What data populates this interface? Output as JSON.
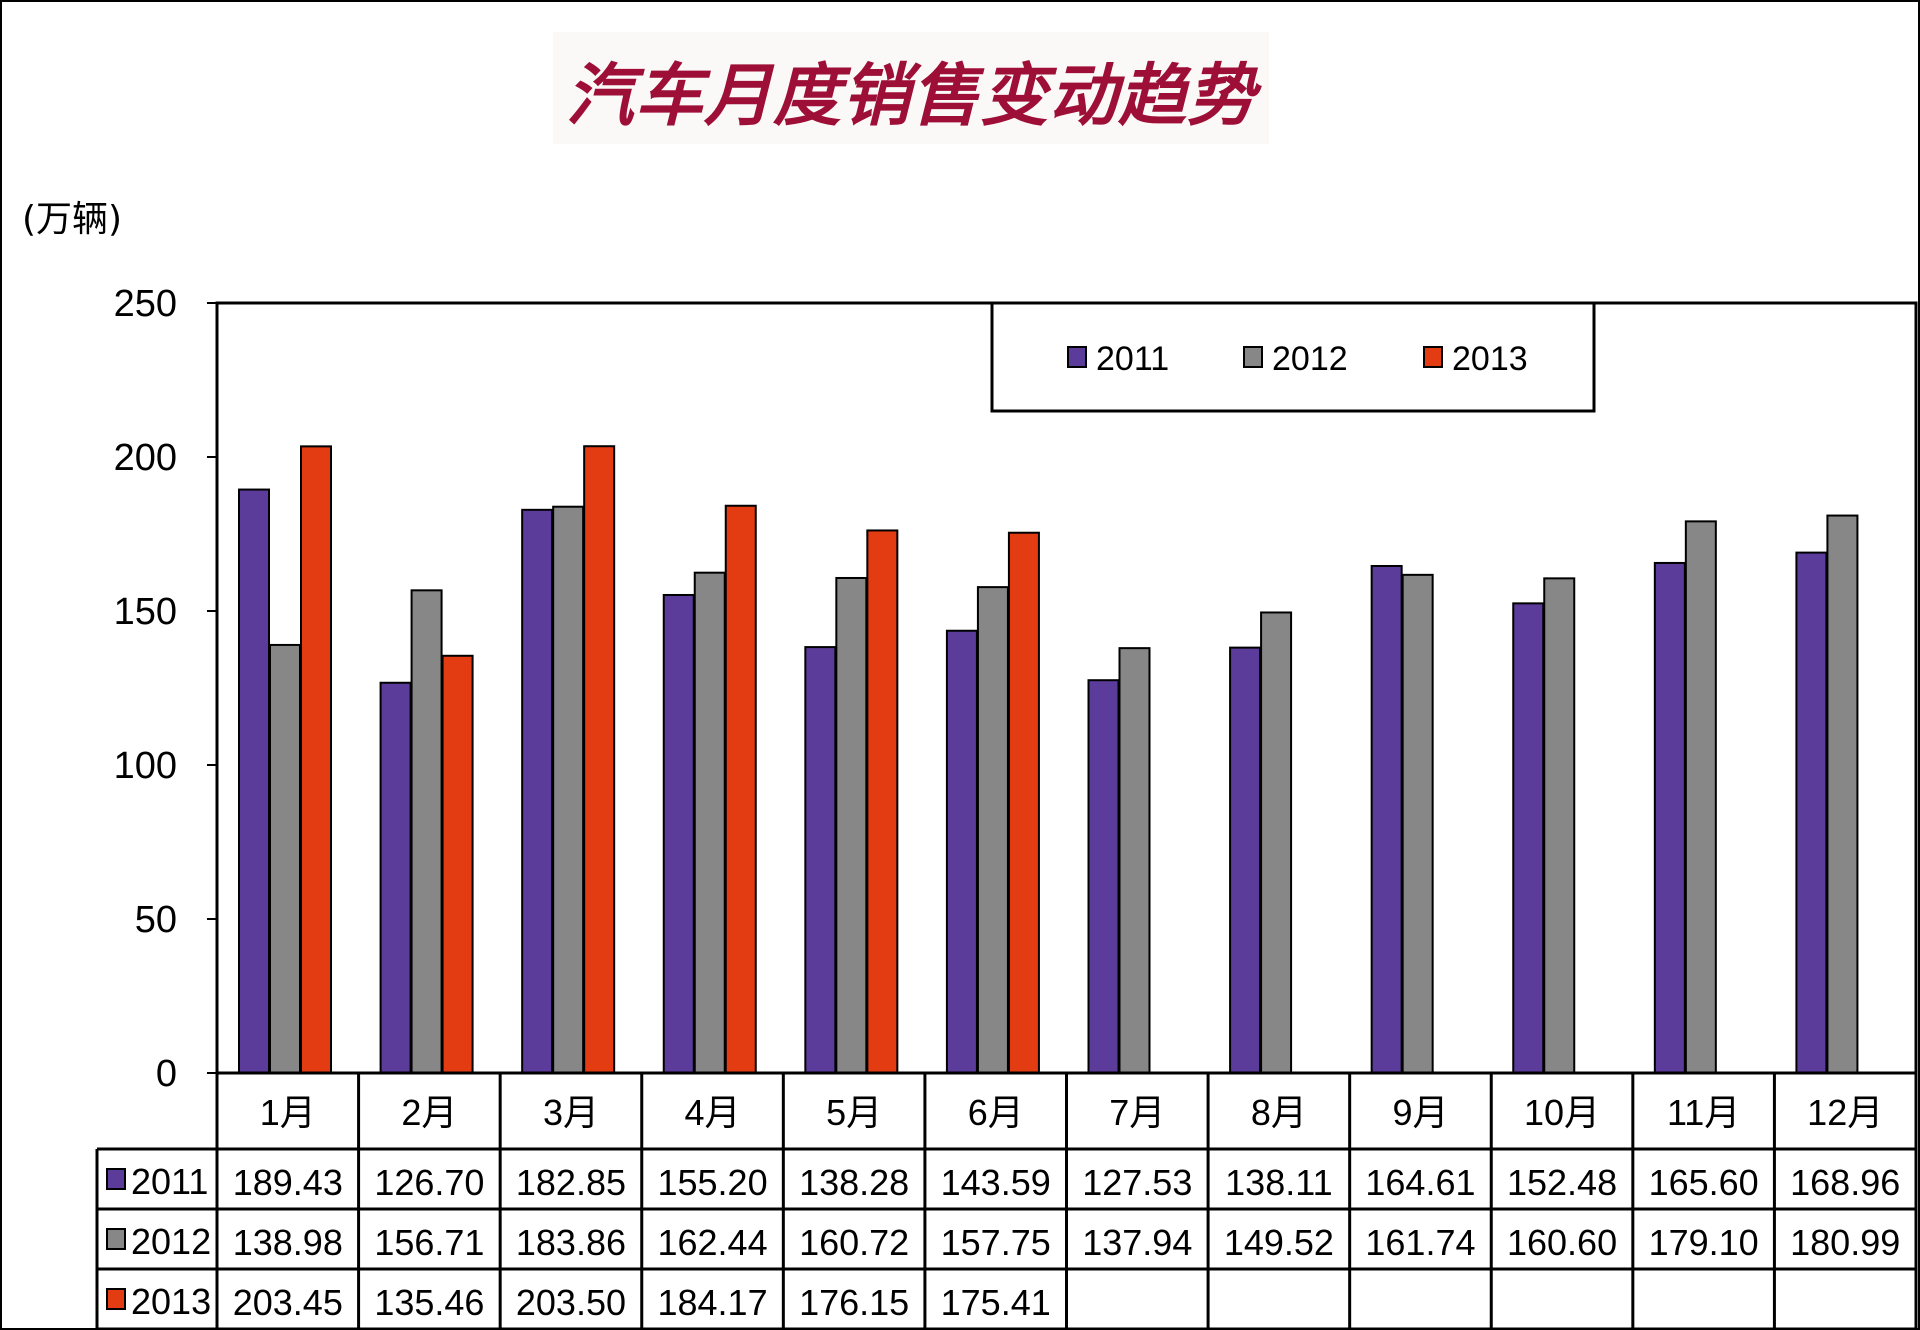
{
  "title": "汽车月度销售变动趋势",
  "unit_label": "(万辆)",
  "colors": {
    "2011": "#5b3c9a",
    "2012": "#878787",
    "2013": "#e43c12",
    "title": "#9d0f36"
  },
  "chart_data": {
    "type": "bar",
    "title": "汽车月度销售变动趋势",
    "ylabel": "(万辆)",
    "ylim": [
      0,
      250
    ],
    "yticks": [
      "0",
      "50",
      "100",
      "150",
      "200",
      "250"
    ],
    "grid": false,
    "legend": "top-right",
    "categories": [
      "1月",
      "2月",
      "3月",
      "4月",
      "5月",
      "6月",
      "7月",
      "8月",
      "9月",
      "10月",
      "11月",
      "12月"
    ],
    "series": [
      {
        "name": "2011",
        "values": [
          189.43,
          126.7,
          182.85,
          155.2,
          138.28,
          143.59,
          127.53,
          138.11,
          164.61,
          152.48,
          165.6,
          168.96
        ],
        "labels": [
          "189.43",
          "126.70",
          "182.85",
          "155.20",
          "138.28",
          "143.59",
          "127.53",
          "138.11",
          "164.61",
          "152.48",
          "165.60",
          "168.96"
        ]
      },
      {
        "name": "2012",
        "values": [
          138.98,
          156.71,
          183.86,
          162.44,
          160.72,
          157.75,
          137.94,
          149.52,
          161.74,
          160.6,
          179.1,
          180.99
        ],
        "labels": [
          "138.98",
          "156.71",
          "183.86",
          "162.44",
          "160.72",
          "157.75",
          "137.94",
          "149.52",
          "161.74",
          "160.60",
          "179.10",
          "180.99"
        ]
      },
      {
        "name": "2013",
        "values": [
          203.45,
          135.46,
          203.5,
          184.17,
          176.15,
          175.41,
          null,
          null,
          null,
          null,
          null,
          null
        ],
        "labels": [
          "203.45",
          "135.46",
          "203.50",
          "184.17",
          "176.15",
          "175.41",
          "",
          "",
          "",
          "",
          "",
          ""
        ]
      }
    ]
  }
}
